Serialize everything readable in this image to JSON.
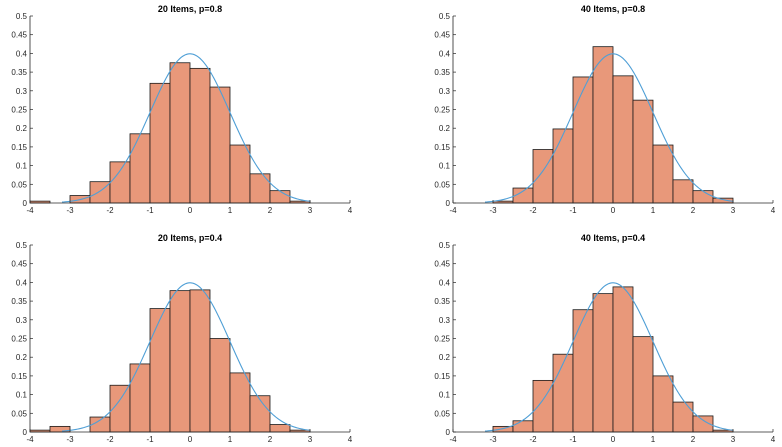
{
  "colors": {
    "bar_fill": "#e8987a",
    "bar_edge": "#1a1a1a",
    "curve": "#4f9fd6",
    "axis": "#262626"
  },
  "chart_data": [
    {
      "type": "bar",
      "title": "20 Items, p=0.8",
      "xlabel": "",
      "ylabel": "",
      "xlim": [
        -4,
        4
      ],
      "ylim": [
        0,
        0.5
      ],
      "xticks": [
        "-4",
        "-3",
        "-2",
        "-1",
        "0",
        "1",
        "2",
        "3",
        "4"
      ],
      "yticks": [
        "0",
        "0.05",
        "0.1",
        "0.15",
        "0.2",
        "0.25",
        "0.3",
        "0.35",
        "0.4",
        "0.45",
        "0.5"
      ],
      "bin_width": 0.5,
      "bin_edges": [
        -4,
        -3.5,
        -3,
        -2.5,
        -2,
        -1.5,
        -1,
        -0.5,
        0,
        0.5,
        1,
        1.5,
        2,
        2.5,
        3
      ],
      "values": [
        0.005,
        0,
        0.02,
        0.057,
        0.11,
        0.185,
        0.32,
        0.375,
        0.36,
        0.31,
        0.155,
        0.078,
        0.033,
        0.005
      ],
      "overlay": "normal pdf",
      "grid": false
    },
    {
      "type": "bar",
      "title": "40 Items, p=0.8",
      "xlabel": "",
      "ylabel": "",
      "xlim": [
        -4,
        4
      ],
      "ylim": [
        0,
        0.5
      ],
      "xticks": [
        "-4",
        "-3",
        "-2",
        "-1",
        "0",
        "1",
        "2",
        "3",
        "4"
      ],
      "yticks": [
        "0",
        "0.05",
        "0.1",
        "0.15",
        "0.2",
        "0.25",
        "0.3",
        "0.35",
        "0.4",
        "0.45",
        "0.5"
      ],
      "bin_width": 0.5,
      "bin_edges": [
        -3,
        -2.5,
        -2,
        -1.5,
        -1,
        -0.5,
        0,
        0.5,
        1,
        1.5,
        2,
        2.5,
        3
      ],
      "values": [
        0.005,
        0.04,
        0.143,
        0.198,
        0.337,
        0.418,
        0.34,
        0.275,
        0.155,
        0.062,
        0.033,
        0.013
      ],
      "overlay": "normal pdf",
      "grid": false
    },
    {
      "type": "bar",
      "title": "20 Items, p=0.4",
      "xlabel": "",
      "ylabel": "",
      "xlim": [
        -4,
        4
      ],
      "ylim": [
        0,
        0.5
      ],
      "xticks": [
        "-4",
        "-3",
        "-2",
        "-1",
        "0",
        "1",
        "2",
        "3",
        "4"
      ],
      "yticks": [
        "0",
        "0.05",
        "0.1",
        "0.15",
        "0.2",
        "0.25",
        "0.3",
        "0.35",
        "0.4",
        "0.45",
        "0.5"
      ],
      "bin_width": 0.5,
      "bin_edges": [
        -4,
        -3.5,
        -3,
        -2.5,
        -2,
        -1.5,
        -1,
        -0.5,
        0,
        0.5,
        1,
        1.5,
        2,
        2.5,
        3
      ],
      "values": [
        0.005,
        0.015,
        0,
        0.04,
        0.125,
        0.182,
        0.33,
        0.378,
        0.38,
        0.25,
        0.158,
        0.097,
        0.02,
        0.005
      ],
      "overlay": "normal pdf",
      "grid": false
    },
    {
      "type": "bar",
      "title": "40 Items, p=0.4",
      "xlabel": "",
      "ylabel": "",
      "xlim": [
        -4,
        4
      ],
      "ylim": [
        0,
        0.5
      ],
      "xticks": [
        "-4",
        "-3",
        "-2",
        "-1",
        "0",
        "1",
        "2",
        "3",
        "4"
      ],
      "yticks": [
        "0",
        "0.05",
        "0.1",
        "0.15",
        "0.2",
        "0.25",
        "0.3",
        "0.35",
        "0.4",
        "0.45",
        "0.5"
      ],
      "bin_width": 0.5,
      "bin_edges": [
        -3,
        -2.5,
        -2,
        -1.5,
        -1,
        -0.5,
        0,
        0.5,
        1,
        1.5,
        2,
        2.5,
        3
      ],
      "values": [
        0.015,
        0.03,
        0.138,
        0.208,
        0.327,
        0.37,
        0.388,
        0.255,
        0.15,
        0.08,
        0.043,
        0.005
      ],
      "overlay": "normal pdf",
      "grid": false
    }
  ]
}
